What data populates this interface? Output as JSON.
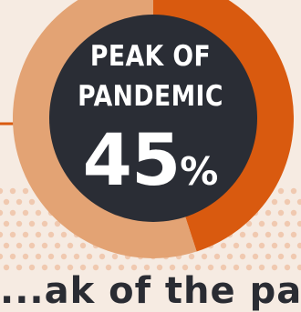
{
  "chart_data": {
    "type": "pie",
    "style": "donut",
    "slices": [
      {
        "value": 45,
        "color": "#d95a0f"
      },
      {
        "value": 55,
        "color": "#e3a374"
      }
    ],
    "title_line1": "PEAK OF",
    "title_line2": "PANDEMIC",
    "center_value": "45",
    "center_unit": "%"
  },
  "footer_text": "...ak of the pand...",
  "colors": {
    "background": "#f6ebe2",
    "center_fill": "#2a2d35",
    "highlight": "#d95a0f",
    "remainder": "#e3a374",
    "dots": "#f0c9b0",
    "accent_line": "#d95a0f"
  }
}
